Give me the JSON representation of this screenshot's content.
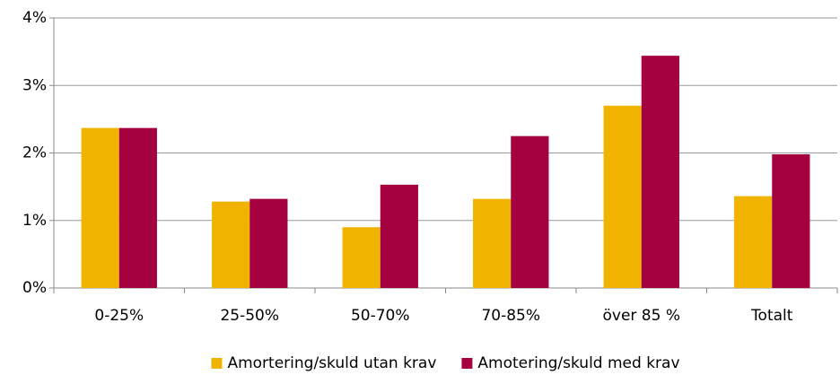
{
  "chart_data": {
    "type": "bar",
    "categories": [
      "0-25%",
      "25-50%",
      "50-70%",
      "70-85%",
      "över 85 %",
      "Totalt"
    ],
    "series": [
      {
        "name": "Amortering/skuld utan krav",
        "color": "#f0b400",
        "values": [
          2.37,
          1.28,
          0.9,
          1.32,
          2.7,
          1.36
        ]
      },
      {
        "name": "Amotering/skuld med krav",
        "color": "#a50040",
        "values": [
          2.37,
          1.32,
          1.53,
          2.25,
          3.44,
          1.98
        ]
      }
    ],
    "ylim": [
      0,
      4
    ],
    "yticks": [
      {
        "value": 0,
        "label": "0%"
      },
      {
        "value": 1,
        "label": "1%"
      },
      {
        "value": 2,
        "label": "2%"
      },
      {
        "value": 3,
        "label": "3%"
      },
      {
        "value": 4,
        "label": "4%"
      }
    ],
    "grid": true,
    "legend": "bottom"
  }
}
